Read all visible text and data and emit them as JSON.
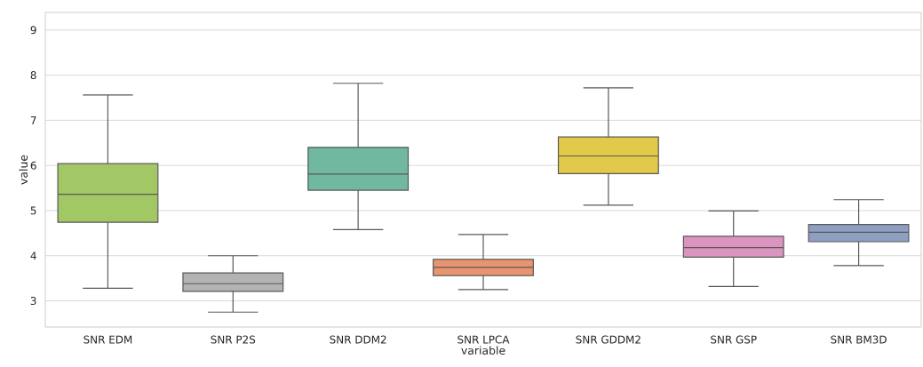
{
  "chart_data": {
    "type": "box",
    "xlabel": "variable",
    "ylabel": "value",
    "categories": [
      "SNR EDM",
      "SNR P2S",
      "SNR DDM2",
      "SNR LPCA",
      "SNR GDDM2",
      "SNR GSP",
      "SNR BM3D"
    ],
    "boxes": [
      {
        "low": 3.28,
        "q1": 4.74,
        "median": 5.36,
        "q3": 6.04,
        "high": 7.56
      },
      {
        "low": 2.75,
        "q1": 3.21,
        "median": 3.38,
        "q3": 3.62,
        "high": 4.0
      },
      {
        "low": 4.58,
        "q1": 5.45,
        "median": 5.81,
        "q3": 6.4,
        "high": 7.82
      },
      {
        "low": 3.25,
        "q1": 3.56,
        "median": 3.74,
        "q3": 3.92,
        "high": 4.47
      },
      {
        "low": 5.12,
        "q1": 5.82,
        "median": 6.21,
        "q3": 6.63,
        "high": 7.72
      },
      {
        "low": 3.32,
        "q1": 3.97,
        "median": 4.18,
        "q3": 4.43,
        "high": 4.99
      },
      {
        "low": 3.78,
        "q1": 4.31,
        "median": 4.52,
        "q3": 4.69,
        "high": 5.24
      }
    ],
    "colors": [
      "#a2c865",
      "#b3b3b3",
      "#70b8a0",
      "#e8956f",
      "#e3c94a",
      "#db93bf",
      "#8f9fc2"
    ],
    "ylim": [
      2.42,
      9.39
    ],
    "yticks": [
      3,
      4,
      5,
      6,
      7,
      8,
      9
    ],
    "grid": "y"
  }
}
